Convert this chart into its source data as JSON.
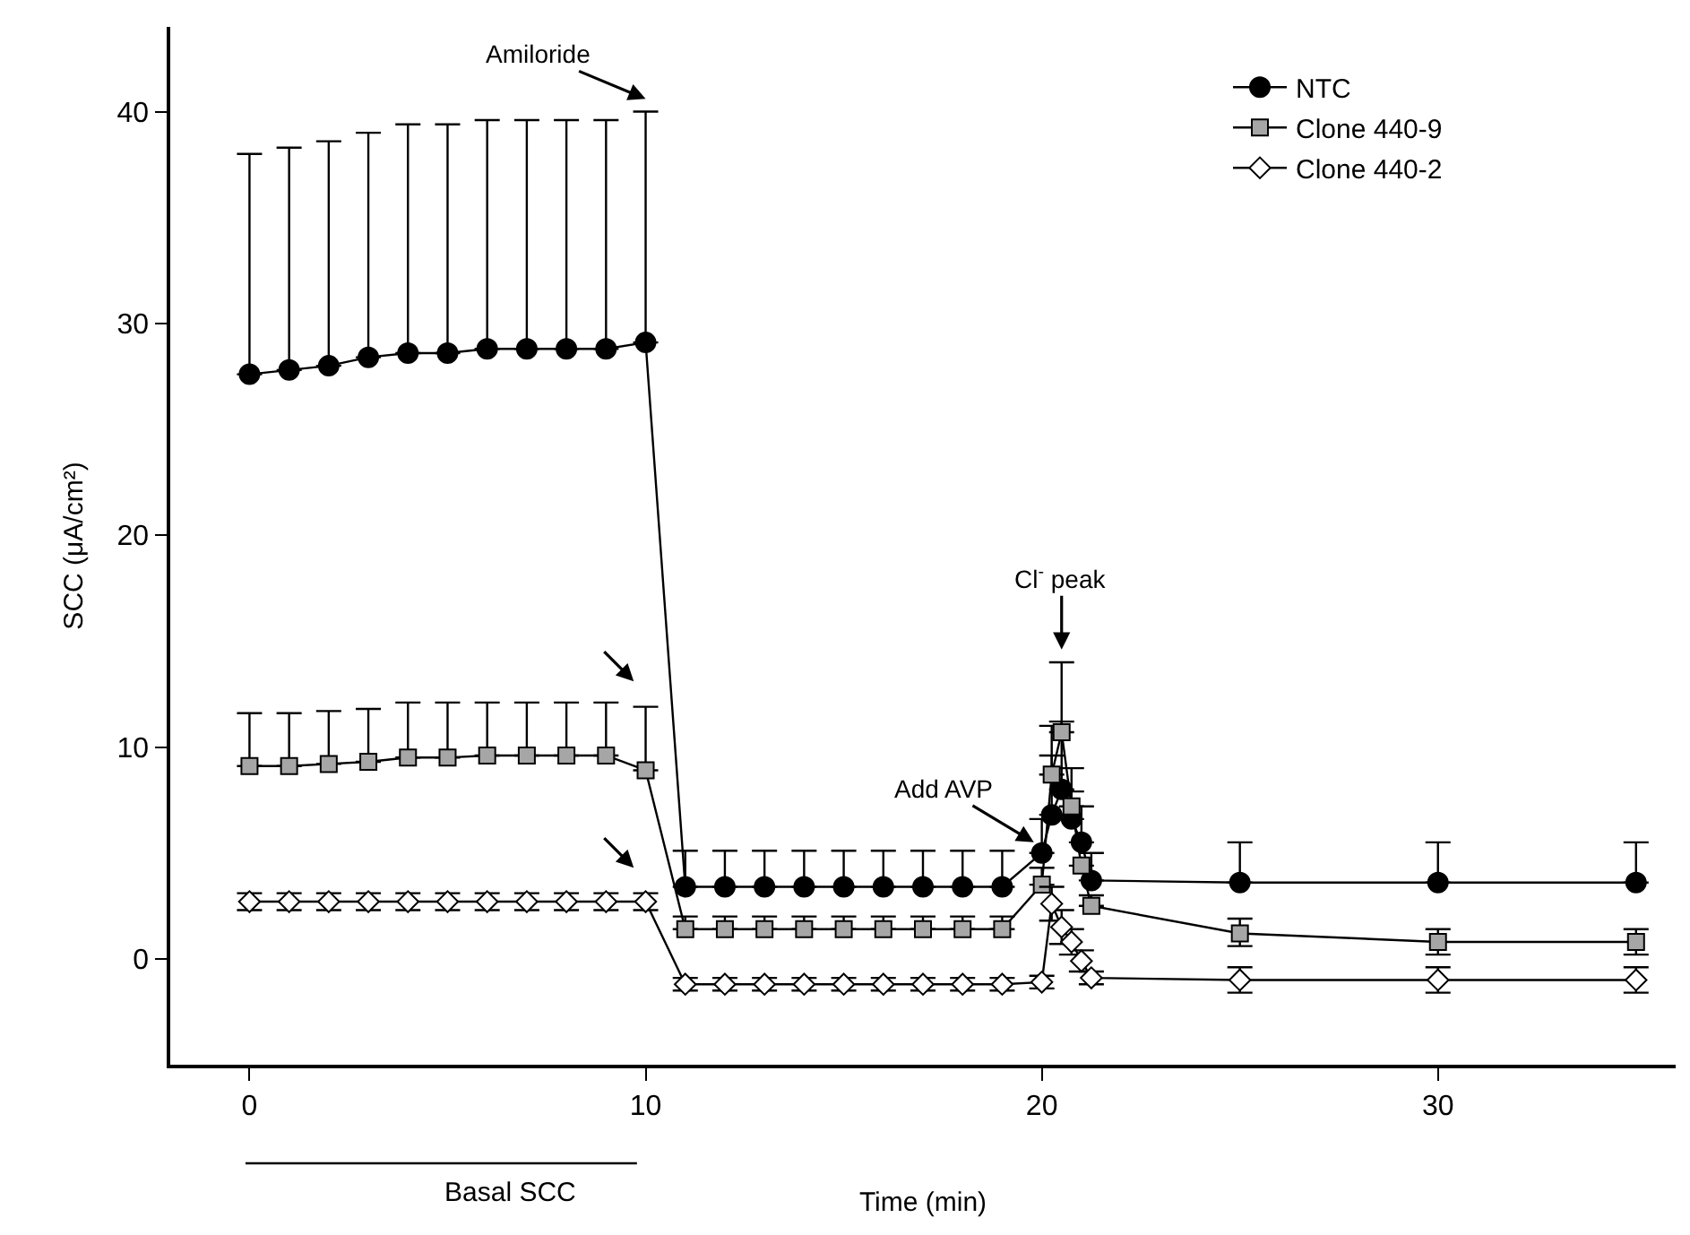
{
  "chart_data": {
    "type": "line",
    "xlabel": "Time (min)",
    "ylabel": "SCC (μA/cm²)",
    "x": [
      0,
      1,
      2,
      3,
      4,
      5,
      6,
      7,
      8,
      9,
      10,
      11,
      12,
      13,
      14,
      15,
      16,
      17,
      18,
      19,
      20,
      20.25,
      20.5,
      20.75,
      21,
      21.25,
      25,
      30,
      35
    ],
    "series": [
      {
        "name": "NTC",
        "color": "#000000",
        "marker": "circle",
        "values": [
          27.6,
          27.8,
          28.0,
          28.4,
          28.6,
          28.6,
          28.8,
          28.8,
          28.8,
          28.8,
          29.1,
          3.4,
          3.4,
          3.4,
          3.4,
          3.4,
          3.4,
          3.4,
          3.4,
          3.4,
          5.0,
          6.8,
          8.0,
          6.6,
          5.5,
          3.7,
          3.6,
          3.6,
          3.6
        ],
        "errors": [
          [
            27.6,
            38.0
          ],
          [
            27.8,
            38.3
          ],
          [
            28.0,
            38.6
          ],
          [
            28.4,
            39.0
          ],
          [
            28.6,
            39.4
          ],
          [
            28.6,
            39.4
          ],
          [
            28.8,
            39.6
          ],
          [
            28.8,
            39.6
          ],
          [
            28.8,
            39.6
          ],
          [
            28.8,
            39.6
          ],
          [
            29.1,
            40.0
          ],
          [
            3.4,
            5.1
          ],
          [
            3.4,
            5.1
          ],
          [
            3.4,
            5.1
          ],
          [
            3.4,
            5.1
          ],
          [
            3.4,
            5.1
          ],
          [
            3.4,
            5.1
          ],
          [
            3.4,
            5.1
          ],
          [
            3.4,
            5.1
          ],
          [
            3.4,
            5.1
          ],
          [
            5.0,
            6.6
          ],
          [
            6.8,
            11.0
          ],
          [
            8.0,
            14.0
          ],
          [
            6.6,
            9.0
          ],
          [
            5.5,
            7.2
          ],
          [
            3.7,
            5.0
          ],
          [
            3.6,
            5.5
          ],
          [
            3.6,
            5.5
          ],
          [
            3.6,
            5.5
          ]
        ]
      },
      {
        "name": "Clone 440-9",
        "color": "#a6a6a6",
        "marker": "square",
        "values": [
          9.1,
          9.1,
          9.2,
          9.3,
          9.5,
          9.5,
          9.6,
          9.6,
          9.6,
          9.6,
          8.9,
          1.4,
          1.4,
          1.4,
          1.4,
          1.4,
          1.4,
          1.4,
          1.4,
          1.4,
          3.5,
          8.7,
          10.7,
          7.2,
          4.4,
          2.5,
          1.2,
          0.8,
          0.8
        ],
        "errors": [
          [
            9.1,
            11.6
          ],
          [
            9.1,
            11.6
          ],
          [
            9.2,
            11.7
          ],
          [
            9.3,
            11.8
          ],
          [
            9.5,
            12.1
          ],
          [
            9.5,
            12.1
          ],
          [
            9.6,
            12.1
          ],
          [
            9.6,
            12.1
          ],
          [
            9.6,
            12.1
          ],
          [
            9.6,
            12.1
          ],
          [
            8.9,
            11.9
          ],
          [
            1.4,
            2.0
          ],
          [
            1.4,
            2.0
          ],
          [
            1.4,
            2.0
          ],
          [
            1.4,
            2.0
          ],
          [
            1.4,
            2.0
          ],
          [
            1.4,
            2.0
          ],
          [
            1.4,
            2.0
          ],
          [
            1.4,
            2.0
          ],
          [
            1.4,
            2.0
          ],
          [
            3.5,
            4.3
          ],
          [
            8.7,
            9.6
          ],
          [
            10.7,
            11.2
          ],
          [
            7.2,
            7.9
          ],
          null,
          [
            2.5,
            3.0
          ],
          [
            0.6,
            1.9
          ],
          [
            0.2,
            1.4
          ],
          [
            0.2,
            1.4
          ]
        ]
      },
      {
        "name": "Clone 440-2",
        "color": "#ffffff",
        "marker": "diamond",
        "values": [
          2.7,
          2.7,
          2.7,
          2.7,
          2.7,
          2.7,
          2.7,
          2.7,
          2.7,
          2.7,
          2.7,
          -1.2,
          -1.2,
          -1.2,
          -1.2,
          -1.2,
          -1.2,
          -1.2,
          -1.2,
          -1.2,
          -1.1,
          2.6,
          1.5,
          0.8,
          -0.1,
          -0.9,
          -1.0,
          -1.0,
          -1.0
        ],
        "errors": [
          0.4,
          0.4,
          0.4,
          0.4,
          0.4,
          0.4,
          0.4,
          0.4,
          0.4,
          0.4,
          0.4,
          0.3,
          0.3,
          0.3,
          0.3,
          0.3,
          0.3,
          0.3,
          0.3,
          0.3,
          0.3,
          0.8,
          0.8,
          0.6,
          0.5,
          0.3,
          0.6,
          0.6,
          0.6
        ]
      }
    ],
    "annotations": [
      "Amiloride",
      {
        "text": "Add AVP",
        "x": 19.8,
        "y": 5.5
      },
      "Cl$^{-}$ peak",
      "Basal SCC"
    ],
    "xlim": [
      -2,
      36
    ],
    "xticks": [
      0,
      10,
      20,
      30
    ],
    "ylim": [
      -5,
      44
    ],
    "yticks": [
      0,
      10,
      20,
      30,
      40
    ],
    "legend": "top right",
    "line_style": "solid"
  }
}
